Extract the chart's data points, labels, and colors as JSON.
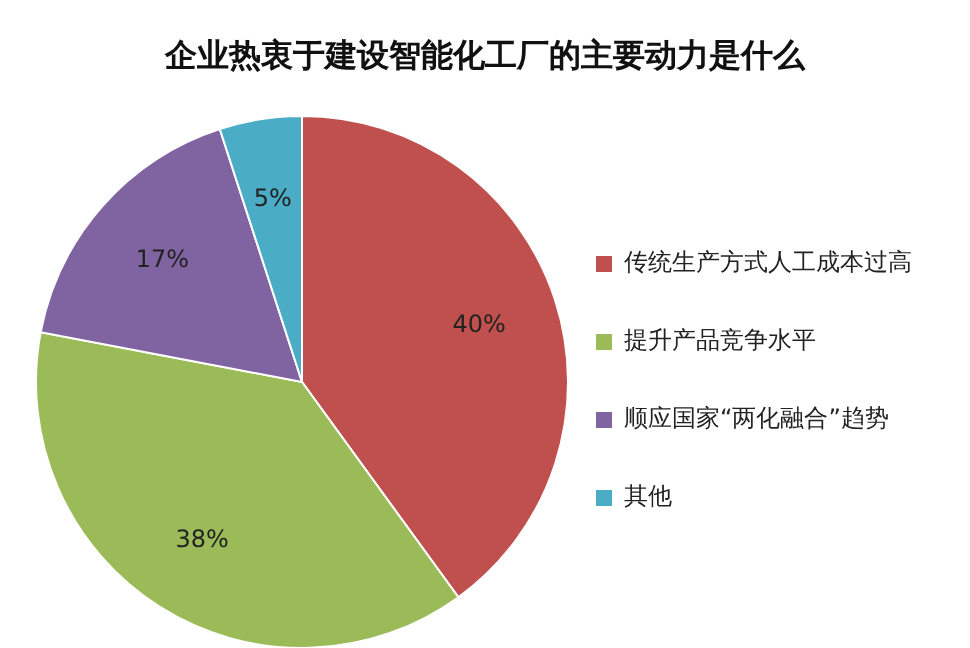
{
  "chart_data": {
    "type": "pie",
    "title": "企业热衷于建设智能化工厂的主要动力是什么",
    "categories": [
      "传统生产方式人工成本过高",
      "提升产品竞争水平",
      "顺应国家“两化融合”趋势",
      "其他"
    ],
    "values": [
      40,
      38,
      17,
      5
    ],
    "colors": [
      "#c0504d",
      "#9bbb59",
      "#8064a2",
      "#4bacc6"
    ],
    "value_labels": [
      "40%",
      "38%",
      "17%",
      "5%"
    ],
    "legend": "right"
  }
}
